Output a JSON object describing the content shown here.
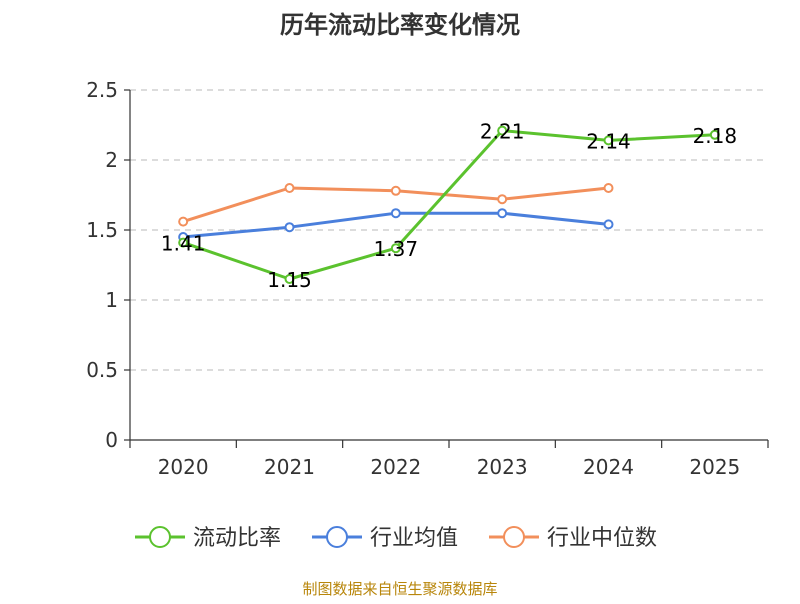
{
  "colors": {
    "current_ratio": "#5bc22e",
    "industry_avg": "#4a7fdc",
    "industry_median": "#f28f5b",
    "grid": "#c8c8c8",
    "axis": "#333333",
    "source": "#b8860b"
  },
  "chart_data": {
    "type": "line",
    "title": "历年流动比率变化情况",
    "categories": [
      "2020",
      "2021",
      "2022",
      "2023",
      "2024",
      "2025"
    ],
    "ylim": [
      0,
      2.5
    ],
    "yticks": [
      "0",
      "0.5",
      "1",
      "1.5",
      "2",
      "2.5"
    ],
    "ytick_values": [
      0,
      0.5,
      1,
      1.5,
      2,
      2.5
    ],
    "grid": true,
    "legend_position": "bottom",
    "series": [
      {
        "name": "流动比率",
        "color_key": "current_ratio",
        "values": [
          1.41,
          1.15,
          1.37,
          2.21,
          2.14,
          2.18
        ],
        "labels": [
          "1.41",
          "1.15",
          "1.37",
          "2.21",
          "2.14",
          "2.18"
        ]
      },
      {
        "name": "行业均值",
        "color_key": "industry_avg",
        "values": [
          1.45,
          1.52,
          1.62,
          1.62,
          1.54,
          null
        ]
      },
      {
        "name": "行业中位数",
        "color_key": "industry_median",
        "values": [
          1.56,
          1.8,
          1.78,
          1.72,
          1.8,
          null
        ]
      }
    ]
  },
  "footer": {
    "source": "制图数据来自恒生聚源数据库"
  }
}
